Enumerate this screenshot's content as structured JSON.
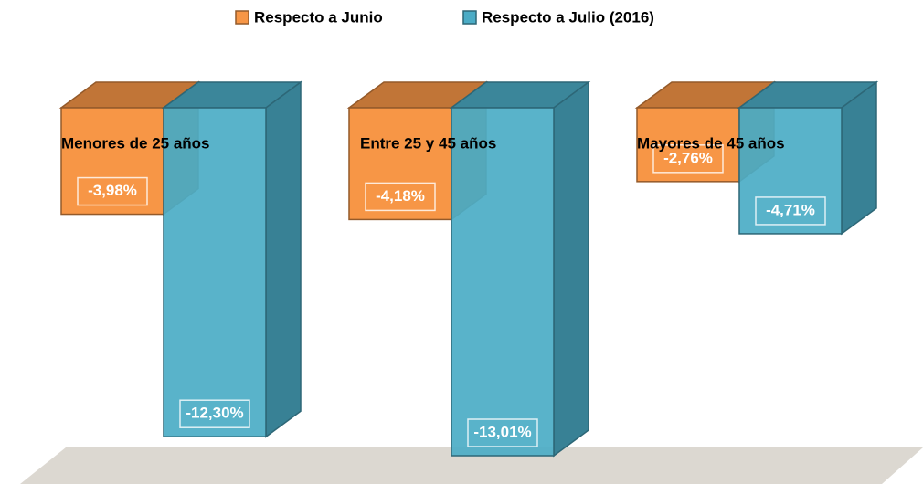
{
  "chart_data": {
    "type": "bar3d",
    "categories": [
      "Menores de 25 años",
      "Entre 25 y 45 años",
      "Mayores de 45 años"
    ],
    "series": [
      {
        "name": "Respecto a Junio",
        "color": "#f79646",
        "values": [
          -3.98,
          -4.18,
          -2.76
        ],
        "value_labels": [
          "-3,98%",
          "-4,18%",
          "-2,76%"
        ]
      },
      {
        "name": "Respecto a Julio (2016)",
        "color": "#4bacc6",
        "values": [
          -12.3,
          -13.01,
          -4.71
        ],
        "value_labels": [
          "-12,30%",
          "-13,01%",
          "-4,71%"
        ]
      }
    ],
    "ylim": [
      -14,
      0
    ],
    "legend": "top"
  }
}
